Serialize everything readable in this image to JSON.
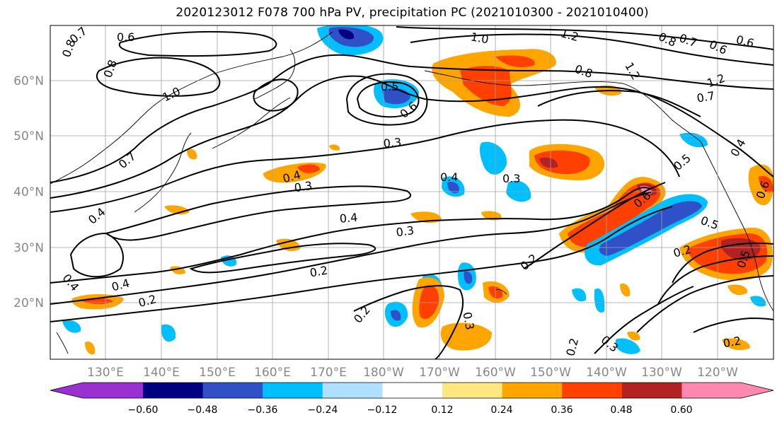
{
  "title": "2020123012 F078 700 hPa PV, precipitation PC (2021010300 - 2021010400)",
  "lat_ticks": [
    "60°N",
    "50°N",
    "40°N",
    "30°N",
    "20°N"
  ],
  "lon_ticks": [
    "130°E",
    "140°E",
    "150°E",
    "160°E",
    "170°E",
    "180°W",
    "170°W",
    "160°W",
    "150°W",
    "140°W",
    "130°W",
    "120°W"
  ],
  "colorbar": {
    "ticks": [
      "−0.60",
      "−0.48",
      "−0.36",
      "−0.24",
      "−0.12",
      "0.12",
      "0.24",
      "0.36",
      "0.48",
      "0.60"
    ],
    "colors": [
      "#9b30d0",
      "#000080",
      "#3050c8",
      "#00bfff",
      "#b0e0ff",
      "#ffffff",
      "#ffe680",
      "#ffa500",
      "#ff4000",
      "#b22222",
      "#ff88b0"
    ]
  },
  "contour_labels": [
    "0.8",
    "0.7",
    "0.6",
    "1.0",
    "1.2",
    "0.8",
    "0.7",
    "0.6",
    "0.6",
    "0.8",
    "0.5",
    "0.6",
    "1.0",
    "0.8",
    "1.2",
    "1.2",
    "0.7",
    "0.7",
    "0.3",
    "0.4",
    "0.3",
    "0.4",
    "0.3",
    "0.4",
    "0.3",
    "0.6",
    "0.5",
    "0.4",
    "0.5",
    "0.6",
    "0.2",
    "0.2",
    "0.2",
    "0.4",
    "0.2",
    "0.2",
    "0.3",
    "0.2",
    "0.3",
    "0.2",
    "0.5",
    "0.4",
    "0.4"
  ]
}
